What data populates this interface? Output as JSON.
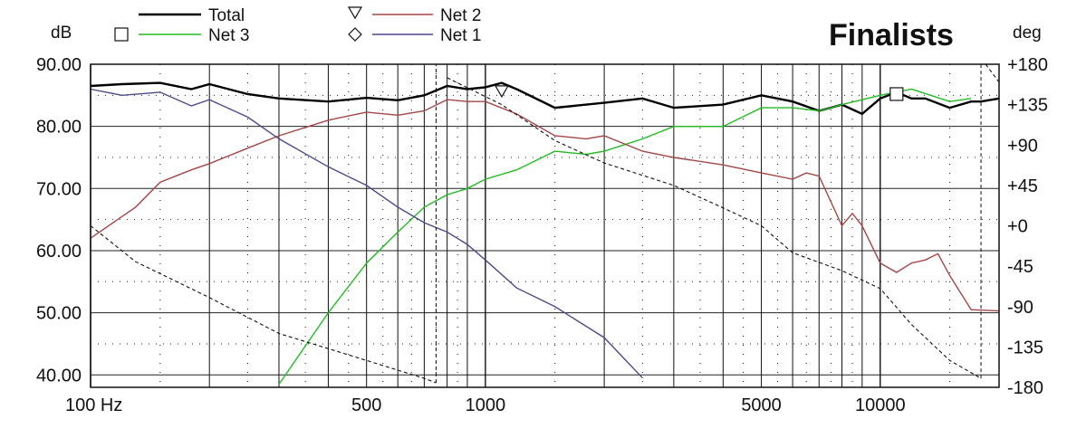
{
  "chart_data": {
    "type": "line",
    "title": "Finalists",
    "ylabel": "dB",
    "y2label": "deg",
    "x_scale": "log",
    "xlim": [
      100,
      20000
    ],
    "ylim": [
      38,
      90
    ],
    "y2lim": [
      -180,
      180
    ],
    "grid": true,
    "legend_position": "top-left",
    "x_ticks": [
      {
        "value": 100,
        "label": "100 Hz"
      },
      {
        "value": 500,
        "label": "500"
      },
      {
        "value": 1000,
        "label": "1000"
      },
      {
        "value": 5000,
        "label": "5000"
      },
      {
        "value": 10000,
        "label": "10000"
      }
    ],
    "y_ticks": [
      {
        "value": 90,
        "label": "90.00"
      },
      {
        "value": 80,
        "label": "80.00"
      },
      {
        "value": 70,
        "label": "70.00"
      },
      {
        "value": 60,
        "label": "60.00"
      },
      {
        "value": 50,
        "label": "50.00"
      },
      {
        "value": 40,
        "label": "40.00"
      }
    ],
    "y2_ticks": [
      {
        "value": 180,
        "label": "+180"
      },
      {
        "value": 135,
        "label": "+135"
      },
      {
        "value": 90,
        "label": "+90"
      },
      {
        "value": 45,
        "label": "+45"
      },
      {
        "value": 0,
        "label": "+0"
      },
      {
        "value": -45,
        "label": "-45"
      },
      {
        "value": -90,
        "label": "-90"
      },
      {
        "value": -135,
        "label": "-135"
      },
      {
        "value": -180,
        "label": "-180"
      }
    ],
    "series": [
      {
        "name": "Total",
        "color": "#000000",
        "marker": "none",
        "axis": "left",
        "x": [
          100,
          120,
          150,
          180,
          200,
          250,
          300,
          400,
          500,
          600,
          700,
          800,
          900,
          1000,
          1100,
          1200,
          1500,
          2000,
          2500,
          3000,
          4000,
          5000,
          6000,
          7000,
          8000,
          9000,
          10000,
          11000,
          12000,
          13000,
          15000,
          17000,
          18000,
          20000
        ],
        "y": [
          86.5,
          86.8,
          87.0,
          86.0,
          86.8,
          85.2,
          84.5,
          84.0,
          84.6,
          84.2,
          85.0,
          86.5,
          86.0,
          86.3,
          87.0,
          86.0,
          83.0,
          83.8,
          84.5,
          83.0,
          83.5,
          85.0,
          84.0,
          82.5,
          83.5,
          82.0,
          84.5,
          85.5,
          84.5,
          84.5,
          83.0,
          84.0,
          84.0,
          84.5
        ]
      },
      {
        "name": "Net 3",
        "color": "#22bb22",
        "marker": "square",
        "axis": "left",
        "x": [
          300,
          400,
          500,
          600,
          700,
          800,
          900,
          1000,
          1200,
          1500,
          1800,
          2000,
          2500,
          3000,
          4000,
          5000,
          6000,
          7000,
          8000,
          10000,
          12000,
          15000,
          17000
        ],
        "y": [
          38.5,
          50,
          58,
          63,
          67,
          69,
          70,
          71.5,
          73,
          76,
          75.5,
          76,
          78,
          80,
          80,
          83,
          83,
          82.5,
          83.5,
          85,
          86,
          84,
          84.5
        ]
      },
      {
        "name": "Net 2",
        "color": "#a54545",
        "marker": "triangle",
        "axis": "left",
        "x": [
          100,
          130,
          150,
          180,
          200,
          250,
          300,
          400,
          500,
          600,
          700,
          800,
          900,
          1000,
          1200,
          1500,
          1800,
          2000,
          2500,
          3000,
          4000,
          5000,
          6000,
          6500,
          7000,
          8000,
          8500,
          9000,
          10000,
          11000,
          12000,
          13000,
          14000,
          15000,
          17000,
          20000
        ],
        "y": [
          62,
          67,
          71,
          73,
          74,
          76.5,
          78.5,
          81,
          82.3,
          81.8,
          82.5,
          84.3,
          84,
          84,
          82,
          78.5,
          78,
          78.5,
          76,
          75,
          73.8,
          72.5,
          71.5,
          72.5,
          72,
          64,
          66,
          64,
          58,
          56.5,
          58,
          58.5,
          59.5,
          56,
          50.5,
          50.3
        ]
      },
      {
        "name": "Net 1",
        "color": "#4a4a8a",
        "marker": "diamond",
        "axis": "left",
        "x": [
          100,
          120,
          150,
          180,
          200,
          250,
          300,
          400,
          500,
          600,
          700,
          800,
          900,
          1000,
          1200,
          1500,
          2000,
          2500
        ],
        "y": [
          86,
          85,
          85.5,
          83.3,
          84.3,
          81.5,
          78,
          73.5,
          70.5,
          67,
          64.5,
          63,
          61,
          58.5,
          54,
          51,
          46,
          39.5
        ]
      },
      {
        "name": "",
        "color": "#111111",
        "dash": true,
        "axis": "right",
        "x": [
          100,
          130,
          200,
          300,
          500,
          700,
          750
        ],
        "y": [
          0,
          -40,
          -80,
          -120,
          -150,
          -170,
          -175
        ],
        "x2": [
          800,
          1100,
          1500,
          2000,
          3000,
          4000,
          5000,
          6000,
          8000,
          10000,
          12000,
          15000,
          18000
        ],
        "y2": [
          165,
          135,
          95,
          70,
          45,
          20,
          0,
          -30,
          -50,
          -70,
          -110,
          -150,
          -170
        ],
        "x3": [
          18500,
          20000
        ],
        "y3": [
          180,
          160
        ]
      }
    ]
  }
}
